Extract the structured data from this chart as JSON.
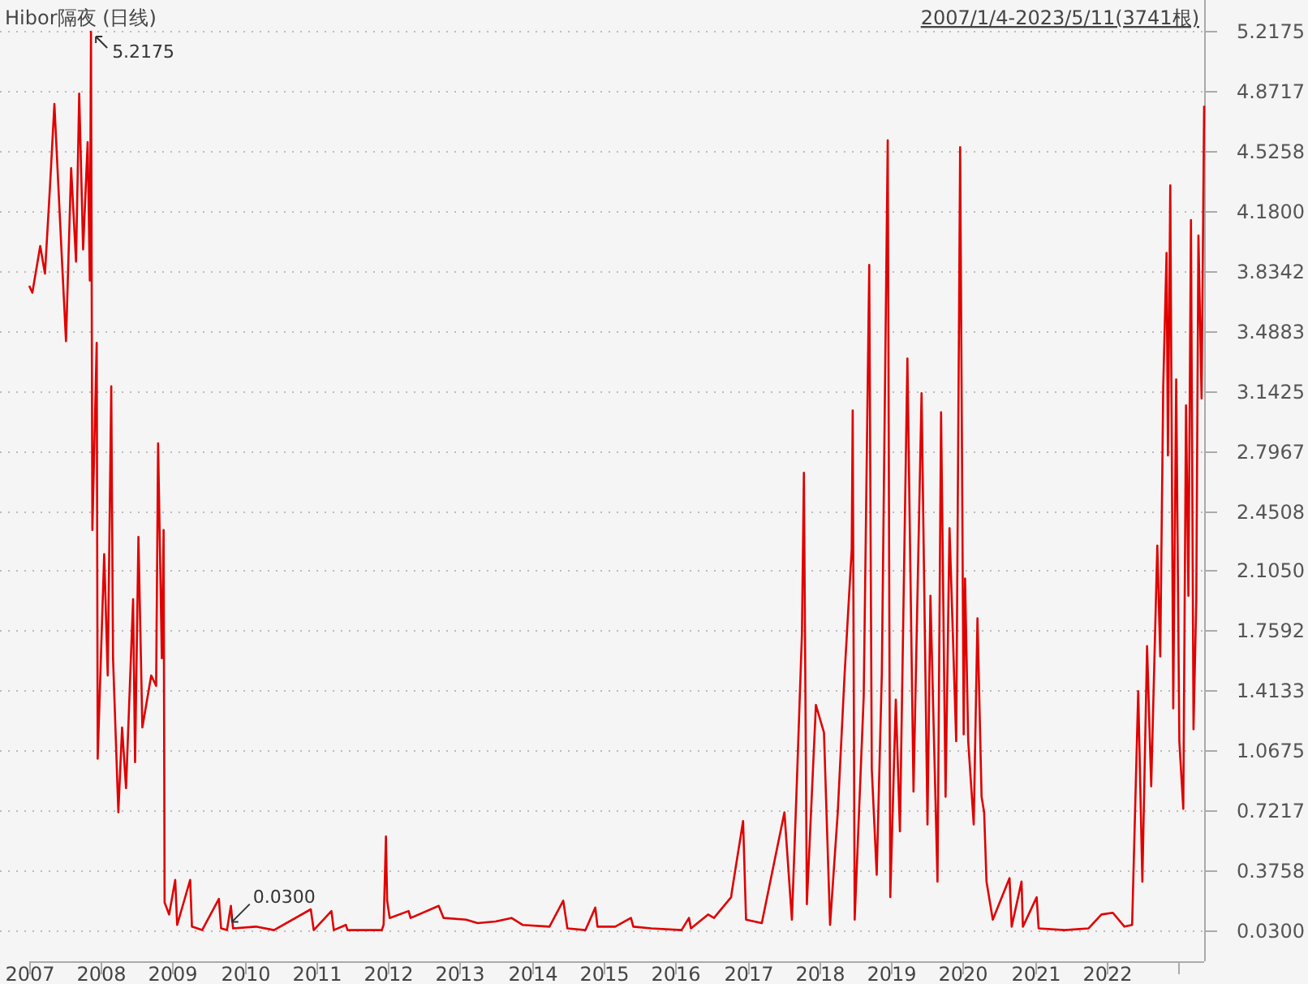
{
  "chart_data": {
    "type": "line",
    "title": "Hibor隔夜 (日线)",
    "subtitle": "2007/1/4-2023/5/11(3741根)",
    "x": [
      "2007-01-04",
      "2007-01-20",
      "2007-03-01",
      "2007-03-25",
      "2007-04-20",
      "2007-05-12",
      "2007-06-15",
      "2007-07-10",
      "2007-08-05",
      "2007-08-30",
      "2007-09-15",
      "2007-10-05",
      "2007-10-28",
      "2007-11-08",
      "2007-11-14",
      "2007-11-21",
      "2007-12-13",
      "2007-12-18",
      "2008-01-20",
      "2008-02-07",
      "2008-02-25",
      "2008-03-05",
      "2008-04-01",
      "2008-04-20",
      "2008-05-10",
      "2008-06-15",
      "2008-06-25",
      "2008-07-12",
      "2008-08-01",
      "2008-09-15",
      "2008-10-10",
      "2008-10-20",
      "2008-11-08",
      "2008-11-17",
      "2008-11-22",
      "2008-12-15",
      "2009-01-15",
      "2009-01-25",
      "2009-04-01",
      "2009-04-10",
      "2009-06-01",
      "2009-08-25",
      "2009-09-05",
      "2009-10-05",
      "2009-10-25",
      "2009-11-05",
      "2010-03-01",
      "2010-06-01",
      "2010-12-05",
      "2010-12-20",
      "2011-03-20",
      "2011-04-01",
      "2011-06-01",
      "2011-06-10",
      "2011-12-01",
      "2011-12-10",
      "2011-12-22",
      "2011-12-28",
      "2012-01-10",
      "2012-04-15",
      "2012-04-25",
      "2012-09-15",
      "2012-10-10",
      "2013-02-01",
      "2013-04-01",
      "2013-07-01",
      "2013-09-20",
      "2013-11-15",
      "2014-04-01",
      "2014-06-10",
      "2014-07-01",
      "2014-10-01",
      "2014-11-20",
      "2014-12-01",
      "2015-03-01",
      "2015-05-20",
      "2015-06-01",
      "2015-09-01",
      "2016-02-01",
      "2016-03-10",
      "2016-03-20",
      "2016-06-15",
      "2016-07-15",
      "2016-10-10",
      "2016-10-15",
      "2016-12-10",
      "2016-12-25",
      "2017-03-15",
      "2017-07-08",
      "2017-08-15",
      "2017-09-10",
      "2017-10-05",
      "2017-10-15",
      "2017-10-30",
      "2017-12-15",
      "2018-01-25",
      "2018-02-25",
      "2018-04-05",
      "2018-05-10",
      "2018-06-15",
      "2018-06-20",
      "2018-06-30",
      "2018-08-15",
      "2018-09-12",
      "2018-09-25",
      "2018-10-20",
      "2018-11-15",
      "2018-12-15",
      "2018-12-28",
      "2019-01-25",
      "2019-02-15",
      "2019-03-25",
      "2019-04-25",
      "2019-06-05",
      "2019-07-05",
      "2019-07-20",
      "2019-08-25",
      "2019-09-12",
      "2019-10-05",
      "2019-10-25",
      "2019-11-28",
      "2019-12-18",
      "2020-01-05",
      "2020-01-12",
      "2020-01-28",
      "2020-02-25",
      "2020-03-15",
      "2020-04-05",
      "2020-04-18",
      "2020-04-30",
      "2020-06-01",
      "2020-08-25",
      "2020-09-05",
      "2020-10-25",
      "2020-11-01",
      "2021-01-10",
      "2021-01-20",
      "2021-06-01",
      "2021-10-01",
      "2021-12-05",
      "2022-02-01",
      "2022-04-01",
      "2022-05-10",
      "2022-06-10",
      "2022-07-01",
      "2022-07-25",
      "2022-08-15",
      "2022-09-15",
      "2022-09-30",
      "2022-10-15",
      "2022-11-01",
      "2022-11-08",
      "2022-11-20",
      "2022-12-05",
      "2022-12-20",
      "2023-01-05",
      "2023-01-25",
      "2023-02-08",
      "2023-02-20",
      "2023-03-05",
      "2023-03-18",
      "2023-04-01",
      "2023-04-12",
      "2023-04-28",
      "2023-05-11"
    ],
    "series": [
      {
        "color": "#e00000",
        "values": [
          3.75,
          3.71,
          3.98,
          3.82,
          4.33,
          4.8,
          4.0,
          3.43,
          4.43,
          3.89,
          4.86,
          3.96,
          4.58,
          3.78,
          5.2175,
          2.34,
          3.42,
          1.02,
          2.2,
          1.5,
          3.17,
          1.6,
          0.71,
          1.2,
          0.85,
          1.94,
          1.0,
          2.3,
          1.2,
          1.5,
          1.44,
          2.84,
          1.6,
          2.34,
          0.19,
          0.12,
          0.32,
          0.06,
          0.32,
          0.05,
          0.03,
          0.21,
          0.04,
          0.03,
          0.17,
          0.04,
          0.05,
          0.03,
          0.15,
          0.03,
          0.14,
          0.03,
          0.06,
          0.03,
          0.03,
          0.06,
          0.57,
          0.2,
          0.1,
          0.14,
          0.1,
          0.17,
          0.1,
          0.09,
          0.07,
          0.08,
          0.1,
          0.06,
          0.05,
          0.2,
          0.04,
          0.03,
          0.16,
          0.05,
          0.05,
          0.1,
          0.05,
          0.04,
          0.03,
          0.1,
          0.04,
          0.12,
          0.1,
          0.22,
          0.26,
          0.66,
          0.09,
          0.07,
          0.71,
          0.09,
          0.91,
          1.74,
          2.67,
          0.18,
          1.33,
          1.17,
          0.06,
          0.71,
          1.51,
          2.23,
          3.03,
          0.09,
          1.38,
          3.87,
          0.96,
          0.35,
          1.51,
          4.59,
          0.22,
          1.36,
          0.6,
          3.33,
          0.83,
          3.13,
          0.64,
          1.96,
          0.31,
          3.02,
          0.8,
          2.35,
          1.12,
          4.55,
          1.16,
          2.06,
          1.12,
          0.64,
          1.83,
          0.8,
          0.71,
          0.31,
          0.09,
          0.33,
          0.05,
          0.31,
          0.05,
          0.22,
          0.04,
          0.03,
          0.04,
          0.12,
          0.13,
          0.05,
          0.06,
          1.41,
          0.31,
          1.67,
          0.86,
          2.25,
          1.61,
          3.16,
          3.94,
          2.77,
          4.33,
          1.31,
          3.21,
          1.12,
          0.73,
          3.06,
          1.96,
          4.13,
          1.19,
          1.93,
          4.04,
          3.1,
          4.79
        ]
      }
    ],
    "xlim": [
      "2007-01-04",
      "2023-05-11"
    ],
    "xticks": [
      {
        "value": "2007-01-04",
        "label": "2007"
      },
      {
        "value": "2008-01-01",
        "label": "2008"
      },
      {
        "value": "2009-01-01",
        "label": "2009"
      },
      {
        "value": "2010-01-01",
        "label": "2010"
      },
      {
        "value": "2011-01-01",
        "label": "2011"
      },
      {
        "value": "2012-01-01",
        "label": "2012"
      },
      {
        "value": "2013-01-01",
        "label": "2013"
      },
      {
        "value": "2014-01-01",
        "label": "2014"
      },
      {
        "value": "2015-01-01",
        "label": "2015"
      },
      {
        "value": "2016-01-01",
        "label": "2016"
      },
      {
        "value": "2017-01-01",
        "label": "2017"
      },
      {
        "value": "2018-01-01",
        "label": "2018"
      },
      {
        "value": "2019-01-01",
        "label": "2019"
      },
      {
        "value": "2020-01-01",
        "label": "2020"
      },
      {
        "value": "2021-01-01",
        "label": "2021"
      },
      {
        "value": "2022-01-01",
        "label": "2022"
      },
      {
        "value": "2023-01-01",
        "label": null
      }
    ],
    "ylim": [
      -0.15,
      5.4
    ],
    "yticks": [
      {
        "value": 0.03,
        "label": "0.0300"
      },
      {
        "value": 0.3758,
        "label": "0.3758"
      },
      {
        "value": 0.7217,
        "label": "0.7217"
      },
      {
        "value": 1.0675,
        "label": "1.0675"
      },
      {
        "value": 1.4133,
        "label": "1.4133"
      },
      {
        "value": 1.7592,
        "label": "1.7592"
      },
      {
        "value": 2.105,
        "label": "2.1050"
      },
      {
        "value": 2.4508,
        "label": "2.4508"
      },
      {
        "value": 2.7967,
        "label": "2.7967"
      },
      {
        "value": 3.1425,
        "label": "3.1425"
      },
      {
        "value": 3.4883,
        "label": "3.4883"
      },
      {
        "value": 3.8342,
        "label": "3.8342"
      },
      {
        "value": 4.18,
        "label": "4.1800"
      },
      {
        "value": 4.5258,
        "label": "4.5258"
      },
      {
        "value": 4.8717,
        "label": "4.8717"
      },
      {
        "value": 5.2175,
        "label": "5.2175"
      }
    ],
    "grid": "y",
    "line_style": "solid",
    "annotations": [
      {
        "text": "5.2175",
        "x": "2007-11-14",
        "y": 5.2175
      },
      {
        "text": "0.0300",
        "x": "2009-10-05",
        "y": 0.03
      }
    ]
  }
}
